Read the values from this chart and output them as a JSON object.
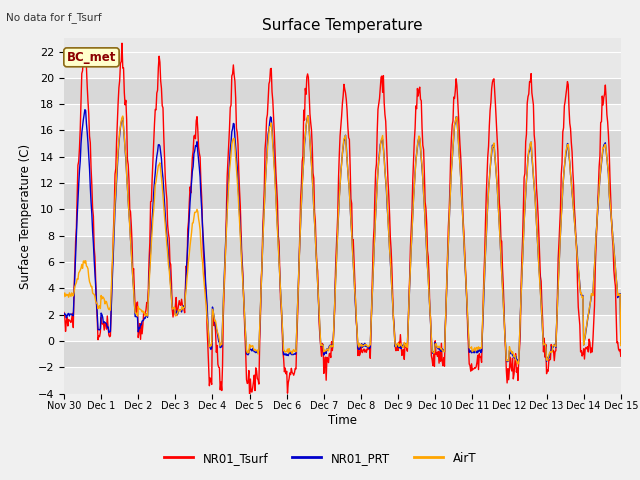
{
  "title": "Surface Temperature",
  "ylabel": "Surface Temperature (C)",
  "xlabel": "Time",
  "top_left_text": "No data for f_Tsurf",
  "annotation_box": "BC_met",
  "ylim": [
    -4,
    23
  ],
  "yticks": [
    -4,
    -2,
    0,
    2,
    4,
    6,
    8,
    10,
    12,
    14,
    16,
    18,
    20,
    22
  ],
  "xtick_labels": [
    "Nov 30",
    "Dec 1",
    "Dec 2",
    "Dec 3",
    "Dec 4",
    "Dec 5",
    "Dec 6",
    "Dec 7",
    "Dec 8",
    "Dec 9",
    "Dec 10",
    "Dec 11",
    "Dec 12",
    "Dec 13",
    "Dec 14",
    "Dec 15"
  ],
  "line_colors": {
    "NR01_Tsurf": "#ff0000",
    "NR01_PRT": "#0000cc",
    "AirT": "#ffa500"
  },
  "line_widths": {
    "NR01_Tsurf": 1.0,
    "NR01_PRT": 1.0,
    "AirT": 1.0
  },
  "fig_bg_color": "#f0f0f0",
  "band_colors": [
    "#e8e8e8",
    "#d8d8d8"
  ],
  "grid_color": "#ffffff",
  "figsize": [
    6.4,
    4.8
  ],
  "dpi": 100
}
